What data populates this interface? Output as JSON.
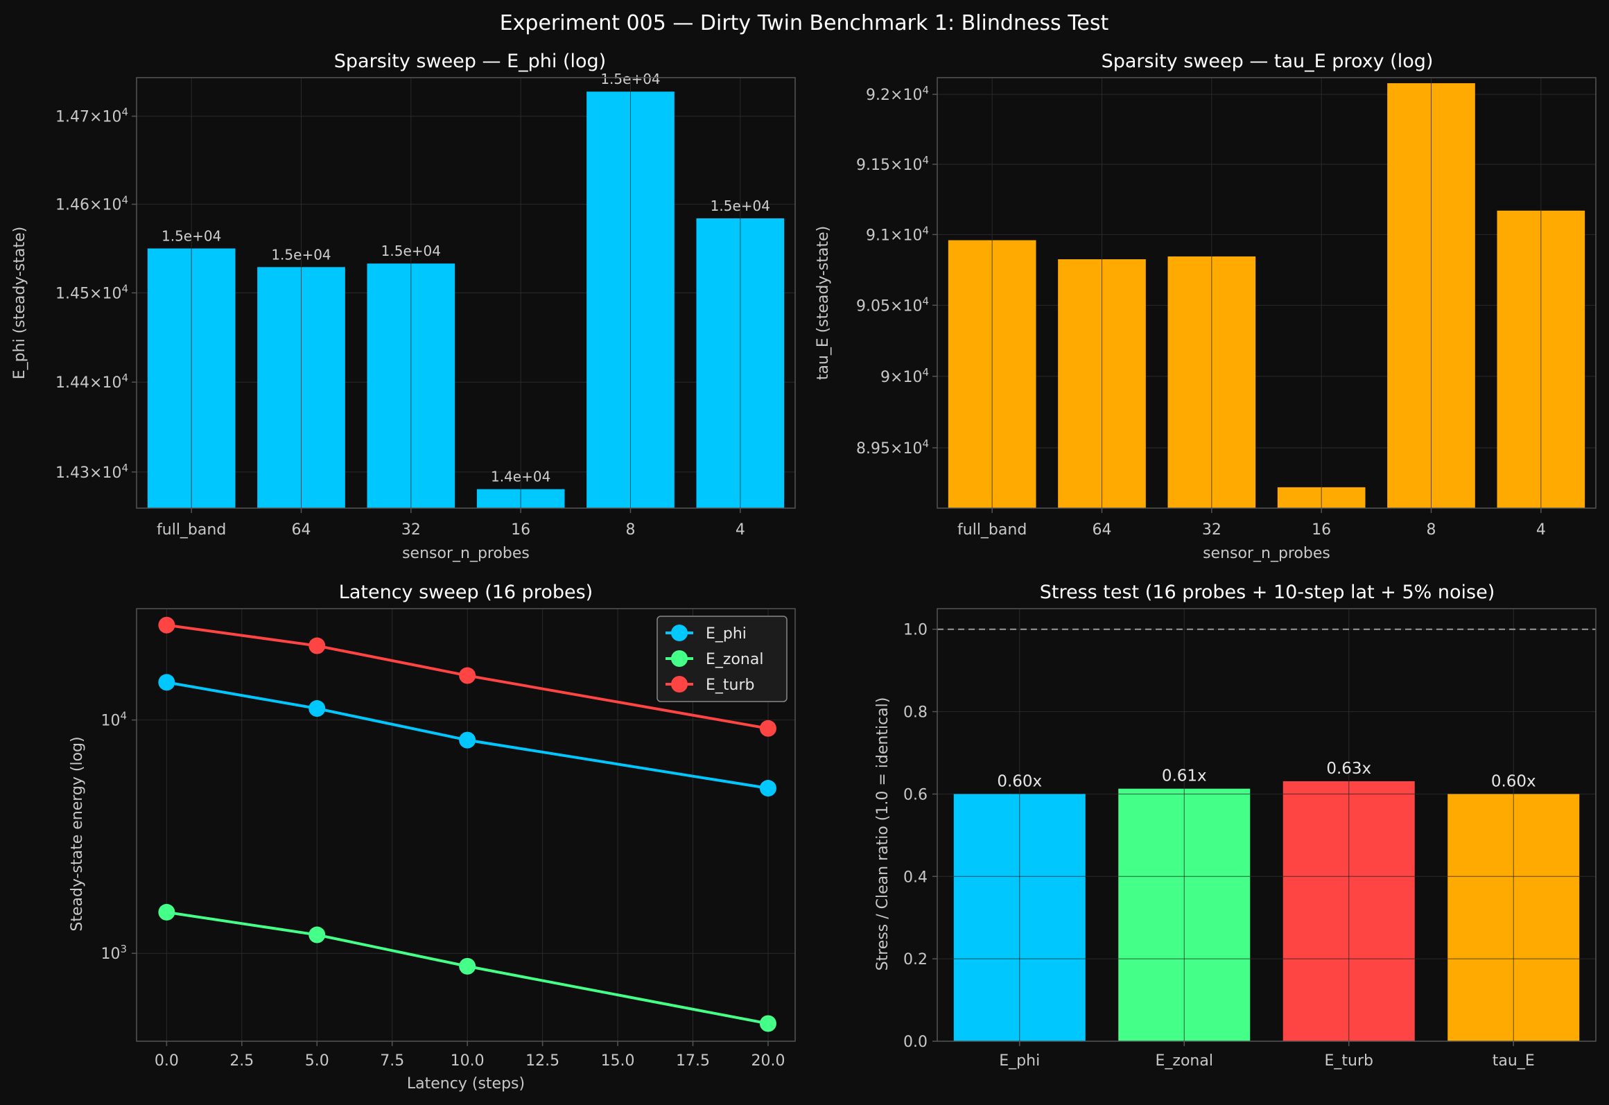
{
  "figure_title": "Experiment 005 — Dirty Twin Benchmark 1: Blindness Test",
  "colors": {
    "background": "#0e0e0e",
    "grid": "#2a2a2a",
    "axes": "#555555",
    "cyan": "#00c8ff",
    "green": "#44ff88",
    "red": "#ff4444",
    "orange": "#ffaa00",
    "reference_line": "#9a9a9a"
  },
  "chart_data": [
    {
      "type": "bar",
      "title": "Sparsity sweep — E_phi (log)",
      "xlabel": "sensor_n_probes",
      "ylabel": "E_phi (steady-state)",
      "yscale": "log",
      "ylim": [
        14260,
        14744
      ],
      "categories": [
        "full_band",
        "64",
        "32",
        "16",
        "8",
        "4"
      ],
      "values": [
        14550,
        14529,
        14533,
        14281,
        14728,
        14584
      ],
      "data_labels": [
        "1.5e+04",
        "1.5e+04",
        "1.5e+04",
        "1.4e+04",
        "1.5e+04",
        "1.5e+04"
      ],
      "yticks": [
        {
          "value": 14300,
          "mant": "1.43",
          "exp": "4"
        },
        {
          "value": 14400,
          "mant": "1.44",
          "exp": "4"
        },
        {
          "value": 14500,
          "mant": "1.45",
          "exp": "4"
        },
        {
          "value": 14600,
          "mant": "1.46",
          "exp": "4"
        },
        {
          "value": 14700,
          "mant": "1.47",
          "exp": "4"
        }
      ],
      "color": "#00c8ff",
      "grid": true
    },
    {
      "type": "bar",
      "title": "Sparsity sweep — tau_E proxy (log)",
      "xlabel": "sensor_n_probes",
      "ylabel": "tau_E (steady-state)",
      "yscale": "log",
      "ylim": [
        89080,
        92120
      ],
      "categories": [
        "full_band",
        "64",
        "32",
        "16",
        "8",
        "4"
      ],
      "values": [
        90960,
        90825,
        90845,
        89225,
        92080,
        91170
      ],
      "yticks": [
        {
          "value": 89500,
          "mant": "8.95",
          "exp": "4"
        },
        {
          "value": 90000,
          "mant": "9",
          "exp": "4"
        },
        {
          "value": 90500,
          "mant": "9.05",
          "exp": "4"
        },
        {
          "value": 91000,
          "mant": "9.1",
          "exp": "4"
        },
        {
          "value": 91500,
          "mant": "9.15",
          "exp": "4"
        },
        {
          "value": 92000,
          "mant": "9.2",
          "exp": "4"
        }
      ],
      "color": "#ffaa00",
      "grid": true
    },
    {
      "type": "line",
      "title": "Latency sweep (16 probes)",
      "xlabel": "Latency (steps)",
      "ylabel": "Steady-state energy (log)",
      "yscale": "log",
      "xlim": [
        -1,
        20.9
      ],
      "ylim": [
        420,
        30000
      ],
      "x": [
        0,
        5,
        10,
        20
      ],
      "xticks": [
        "0.0",
        "2.5",
        "5.0",
        "7.5",
        "10.0",
        "12.5",
        "15.0",
        "17.5",
        "20.0"
      ],
      "yticks": [
        {
          "value": 1000,
          "mant": "10",
          "exp": "3"
        },
        {
          "value": 10000,
          "mant": "10",
          "exp": "4"
        }
      ],
      "series": [
        {
          "name": "E_phi",
          "values": [
            14500,
            11200,
            8200,
            5100
          ],
          "color": "#00c8ff"
        },
        {
          "name": "E_zonal",
          "values": [
            1500,
            1200,
            880,
            500
          ],
          "color": "#44ff88"
        },
        {
          "name": "E_turb",
          "values": [
            25500,
            20800,
            15500,
            9200
          ],
          "color": "#ff4444"
        }
      ],
      "legend": "top-right",
      "grid": true
    },
    {
      "type": "bar",
      "title": "Stress test (16 probes + 10-step lat + 5% noise)",
      "xlabel": "",
      "ylabel": "Stress / Clean ratio  (1.0 = identical)",
      "ylim": [
        0,
        1.05
      ],
      "categories": [
        "E_phi",
        "E_zonal",
        "E_turb",
        "tau_E"
      ],
      "values": [
        0.6,
        0.613,
        0.631,
        0.6
      ],
      "data_labels": [
        "0.60x",
        "0.61x",
        "0.63x",
        "0.60x"
      ],
      "colors": [
        "#00c8ff",
        "#44ff88",
        "#ff4444",
        "#ffaa00"
      ],
      "yticks": [
        "0.0",
        "0.2",
        "0.4",
        "0.6",
        "0.8",
        "1.0"
      ],
      "reference_line": 1.0,
      "grid": true
    }
  ]
}
